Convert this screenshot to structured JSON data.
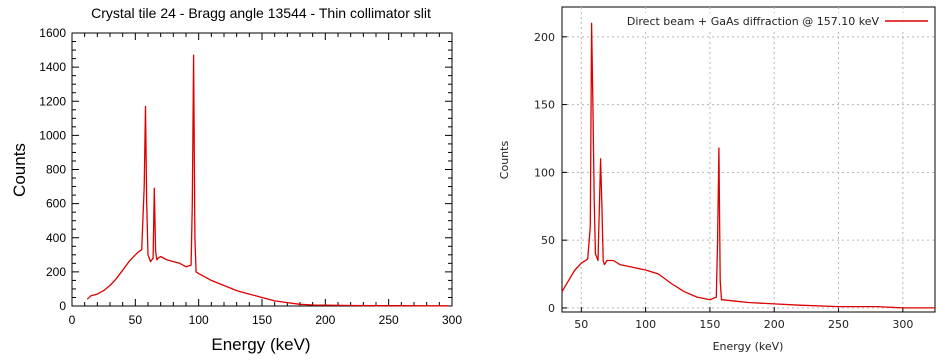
{
  "chart_data": [
    {
      "type": "line",
      "title": "Crystal tile 24 - Bragg angle 13544 - Thin collimator slit",
      "xlabel": "Energy (keV)",
      "ylabel": "Counts",
      "xlim": [
        0,
        300
      ],
      "ylim": [
        0,
        1600
      ],
      "xticks": [
        "0",
        "50",
        "100",
        "150",
        "200",
        "250",
        "300"
      ],
      "yticks": [
        "0",
        "200",
        "400",
        "600",
        "800",
        "1000",
        "1200",
        "1400",
        "1600"
      ],
      "grid": false,
      "color": "#dd0000",
      "series": [
        {
          "x": [
            12,
            15,
            20,
            25,
            30,
            35,
            40,
            45,
            50,
            53,
            55,
            57,
            58,
            59,
            60,
            62,
            64,
            65,
            66,
            67,
            68,
            70,
            75,
            80,
            85,
            90,
            94,
            95,
            96,
            97,
            98,
            100,
            110,
            120,
            130,
            140,
            150,
            160,
            170,
            180,
            190,
            200,
            220,
            240,
            260,
            280,
            297
          ],
          "y": [
            40,
            60,
            70,
            90,
            120,
            160,
            210,
            260,
            300,
            320,
            330,
            700,
            1170,
            600,
            300,
            260,
            280,
            690,
            320,
            270,
            280,
            290,
            270,
            260,
            250,
            230,
            240,
            600,
            1470,
            400,
            200,
            190,
            150,
            120,
            90,
            70,
            50,
            30,
            20,
            10,
            6,
            5,
            3,
            2,
            2,
            1,
            1
          ]
        }
      ]
    },
    {
      "type": "line",
      "xlabel": "Energy (keV)",
      "ylabel": "Counts",
      "xlim": [
        35,
        325
      ],
      "ylim": [
        -3,
        222
      ],
      "xticks": [
        "50",
        "100",
        "150",
        "200",
        "250",
        "300"
      ],
      "yticks": [
        "0",
        "50",
        "100",
        "150",
        "200"
      ],
      "grid": true,
      "legend_position": "top-right",
      "color": "#dd0000",
      "series": [
        {
          "name": "Direct beam + GaAs diffraction @ 157.10 keV",
          "x": [
            35,
            40,
            45,
            50,
            55,
            57,
            58,
            59,
            60,
            61,
            63,
            65,
            66,
            67,
            68,
            70,
            75,
            80,
            90,
            100,
            110,
            120,
            130,
            140,
            150,
            155,
            156,
            157,
            158,
            159,
            160,
            170,
            180,
            200,
            220,
            250,
            280,
            300,
            325
          ],
          "y": [
            12,
            20,
            28,
            33,
            36,
            60,
            210,
            150,
            80,
            40,
            35,
            110,
            75,
            35,
            32,
            35,
            35,
            32,
            30,
            28,
            25,
            18,
            12,
            8,
            6,
            8,
            50,
            118,
            20,
            6,
            6,
            5,
            4,
            3,
            2,
            1,
            1,
            0,
            0
          ]
        }
      ]
    }
  ]
}
